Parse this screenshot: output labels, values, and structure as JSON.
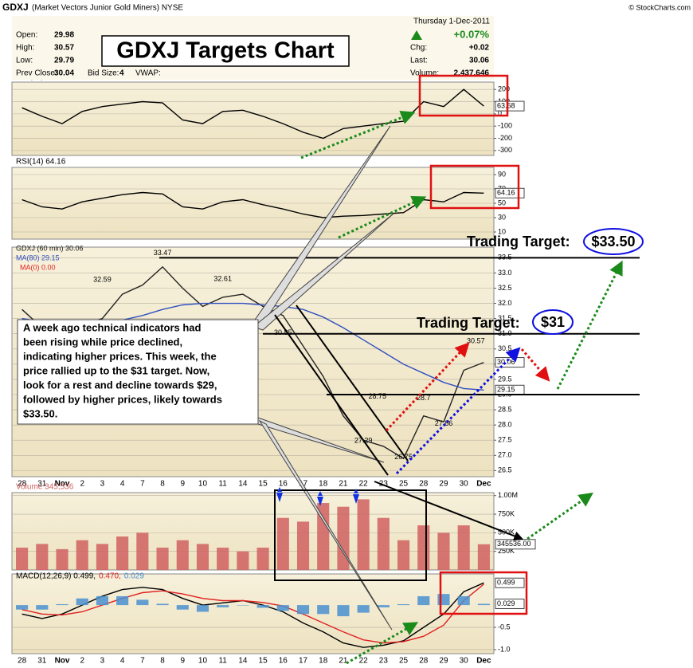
{
  "header": {
    "symbol": "GDXJ",
    "name": "(Market Vectors Junior Gold Miners) NYSE",
    "source": "© StockCharts.com",
    "date": "Thursday 1-Dec-2011",
    "change_pct": "+0.07%",
    "left_fields": [
      {
        "label": "Open:",
        "value": 29.98
      },
      {
        "label": "High:",
        "value": 30.57
      },
      {
        "label": "Low:",
        "value": 29.79
      },
      {
        "label": "Prev Close:",
        "value": 30.04
      }
    ],
    "bid_label": "Bid Size:",
    "bid_value": 4,
    "vwap_label": "VWAP:",
    "right_fields": [
      {
        "label": "Chg:",
        "value": "+0.02"
      },
      {
        "label": "Last:",
        "value": 30.06
      },
      {
        "label": "Volume:",
        "value": "2,437,646"
      }
    ]
  },
  "title_box": "GDXJ Targets Chart",
  "targets": [
    {
      "label": "Trading Target:",
      "value": "$33.50"
    },
    {
      "label": "Trading Target:",
      "value": "$31"
    }
  ],
  "annotation_lines": [
    "A week ago technical indicators had",
    "been rising while price declined,",
    "indicating higher prices.  This week, the",
    "price rallied up to the $31 target.  Now,",
    "look for a rest and decline towards $29,",
    "followed by higher prices, likely  towards",
    "$33.50."
  ],
  "chart_data": [
    {
      "type": "line",
      "ylim": [
        -340,
        260
      ],
      "yticks": [
        200,
        100,
        0,
        -100,
        -200,
        -300
      ],
      "grid": true,
      "series": [
        {
          "name": "CCI(20) 63.68",
          "color": "#000000",
          "last_value_box": true,
          "values": [
            50,
            -20,
            -80,
            20,
            60,
            80,
            100,
            90,
            -50,
            -80,
            20,
            30,
            -20,
            -80,
            -150,
            -200,
            -120,
            -100,
            -80,
            -60,
            100,
            60,
            200,
            63.68
          ]
        }
      ]
    },
    {
      "type": "line",
      "ylim": [
        0,
        100
      ],
      "yticks": [
        90,
        70,
        50,
        30,
        10
      ],
      "grid": true,
      "series": [
        {
          "name": "RSI(14) 64.16",
          "color": "#000000",
          "last_value_box": true,
          "values": [
            55,
            45,
            42,
            52,
            57,
            62,
            65,
            63,
            45,
            42,
            52,
            55,
            48,
            42,
            35,
            30,
            32,
            33,
            35,
            37,
            55,
            52,
            65,
            64.16
          ]
        }
      ]
    },
    {
      "type": "line",
      "ylim": [
        26.3,
        33.85
      ],
      "yticks": [
        {
          "value": 33.5,
          "label": "33.5"
        },
        {
          "value": 33,
          "label": "33.0"
        },
        {
          "value": 32.5,
          "label": "32.5"
        },
        {
          "value": 32,
          "label": "32.0"
        },
        {
          "value": 31.5,
          "label": "31.5"
        },
        {
          "value": 31,
          "label": "31.0"
        },
        {
          "value": 30.5,
          "label": "30.5"
        },
        {
          "value": 30,
          "label": "30.0"
        },
        {
          "value": 29.5,
          "label": "29.5"
        },
        {
          "value": 29,
          "label": "29.0"
        },
        {
          "value": 28.5,
          "label": "28.5"
        },
        {
          "value": 28,
          "label": "28.0"
        },
        {
          "value": 27.5,
          "label": "27.5"
        },
        {
          "value": 27,
          "label": "27.0"
        },
        {
          "value": 26.5,
          "label": "26.5"
        }
      ],
      "grid": true,
      "categories": [
        "28",
        "31",
        "Nov",
        "2",
        "3",
        "4",
        "7",
        "8",
        "9",
        "10",
        "11",
        "14",
        "15",
        "16",
        "17",
        "18",
        "21",
        "22",
        "23",
        "25",
        "28",
        "29",
        "30",
        "Dec"
      ],
      "series": [
        {
          "name": "GDXJ (60 min) 30.06",
          "color": "#222222",
          "last_value_box": true,
          "values": [
            31.8,
            31.2,
            30.9,
            31.3,
            31.5,
            32.3,
            32.6,
            33.2,
            32.5,
            31.9,
            32.2,
            32.3,
            31.9,
            31.6,
            30.6,
            29.6,
            28.3,
            27.5,
            27.3,
            26.9,
            28.3,
            28.1,
            29.8,
            30.06
          ]
        },
        {
          "name": "MA(80) 29.15",
          "color": "#3050c0",
          "last_value_box": true,
          "values": [
            31.5,
            31.4,
            31.3,
            31.3,
            31.35,
            31.45,
            31.6,
            31.8,
            31.95,
            32.0,
            32.0,
            32.0,
            31.95,
            31.9,
            31.8,
            31.55,
            31.2,
            30.8,
            30.4,
            30.0,
            29.7,
            29.4,
            29.2,
            29.15
          ]
        }
      ],
      "extra_legend": "MA(0) 0.00",
      "hlines": [
        33.5,
        31,
        29
      ],
      "point_labels": [
        {
          "index": 7,
          "value": 33.47
        },
        {
          "index": 4,
          "value": 32.59
        },
        {
          "index": 10,
          "value": 32.61
        },
        {
          "index": 13,
          "value": 30.85
        },
        {
          "index": 17.7,
          "value": 28.75
        },
        {
          "index": 20,
          "value": 28.7
        },
        {
          "index": 17,
          "value": 27.29
        },
        {
          "index": 19,
          "value": 26.75
        },
        {
          "index": 21,
          "value": 27.86
        },
        {
          "index": 22.6,
          "value": 30.57
        }
      ]
    },
    {
      "type": "bar",
      "ylim": [
        0,
        1040000
      ],
      "yticks": [
        {
          "value": 1000000,
          "label": "1.00M"
        },
        {
          "value": 750000,
          "label": "750K"
        },
        {
          "value": 500000,
          "label": "500K"
        },
        {
          "value": 250000,
          "label": "250K"
        }
      ],
      "grid": true,
      "series": [
        {
          "name": "Volume 345,536",
          "color": "#d06060",
          "values": [
            300000,
            350000,
            280000,
            400000,
            350000,
            450000,
            500000,
            300000,
            400000,
            350000,
            300000,
            250000,
            300000,
            700000,
            650000,
            900000,
            850000,
            950000,
            700000,
            400000,
            600000,
            500000,
            600000,
            345536
          ],
          "value_labels": [
            null,
            null,
            null,
            null,
            null,
            null,
            null,
            null,
            null,
            null,
            null,
            null,
            null,
            null,
            null,
            null,
            null,
            null,
            null,
            null,
            null,
            null,
            null,
            "345536.00"
          ]
        }
      ]
    },
    {
      "type": "line",
      "ylim": [
        -1.09,
        0.7
      ],
      "yticks": [
        -0.5,
        {
          "value": -1,
          "label": "-1.0"
        }
      ],
      "grid": true,
      "categories": [
        "28",
        "31",
        "Nov",
        "2",
        "3",
        "4",
        "7",
        "8",
        "9",
        "10",
        "11",
        "14",
        "15",
        "16",
        "17",
        "18",
        "21",
        "22",
        "23",
        "25",
        "28",
        "29",
        "30",
        "Dec"
      ],
      "series": [
        {
          "name": "MACD(12,26,9) 0.499,",
          "color": "#000000",
          "last_value_box": true,
          "values": [
            -0.2,
            -0.3,
            -0.2,
            0.0,
            0.2,
            0.35,
            0.4,
            0.35,
            0.15,
            0.0,
            0.05,
            0.1,
            0.0,
            -0.15,
            -0.4,
            -0.6,
            -0.85,
            -0.95,
            -0.9,
            -0.8,
            -0.5,
            -0.2,
            0.3,
            0.499
          ]
        },
        {
          "name": "0.470,",
          "color": "#e02020",
          "values": [
            -0.1,
            -0.2,
            -0.22,
            -0.15,
            0.0,
            0.15,
            0.28,
            0.32,
            0.25,
            0.15,
            0.1,
            0.1,
            0.06,
            -0.02,
            -0.2,
            -0.4,
            -0.6,
            -0.78,
            -0.85,
            -0.82,
            -0.7,
            -0.45,
            0.1,
            0.47
          ]
        },
        {
          "name": "0.029",
          "color": "#4a90d0",
          "style": "histogram",
          "last_value_box": true,
          "values": [
            -0.1,
            -0.1,
            0.02,
            0.15,
            0.2,
            0.2,
            0.12,
            0.03,
            -0.1,
            -0.15,
            -0.05,
            0,
            -0.06,
            -0.13,
            -0.2,
            -0.2,
            -0.25,
            -0.17,
            -0.05,
            0.02,
            0.2,
            0.25,
            0.2,
            0.029
          ]
        }
      ]
    }
  ]
}
